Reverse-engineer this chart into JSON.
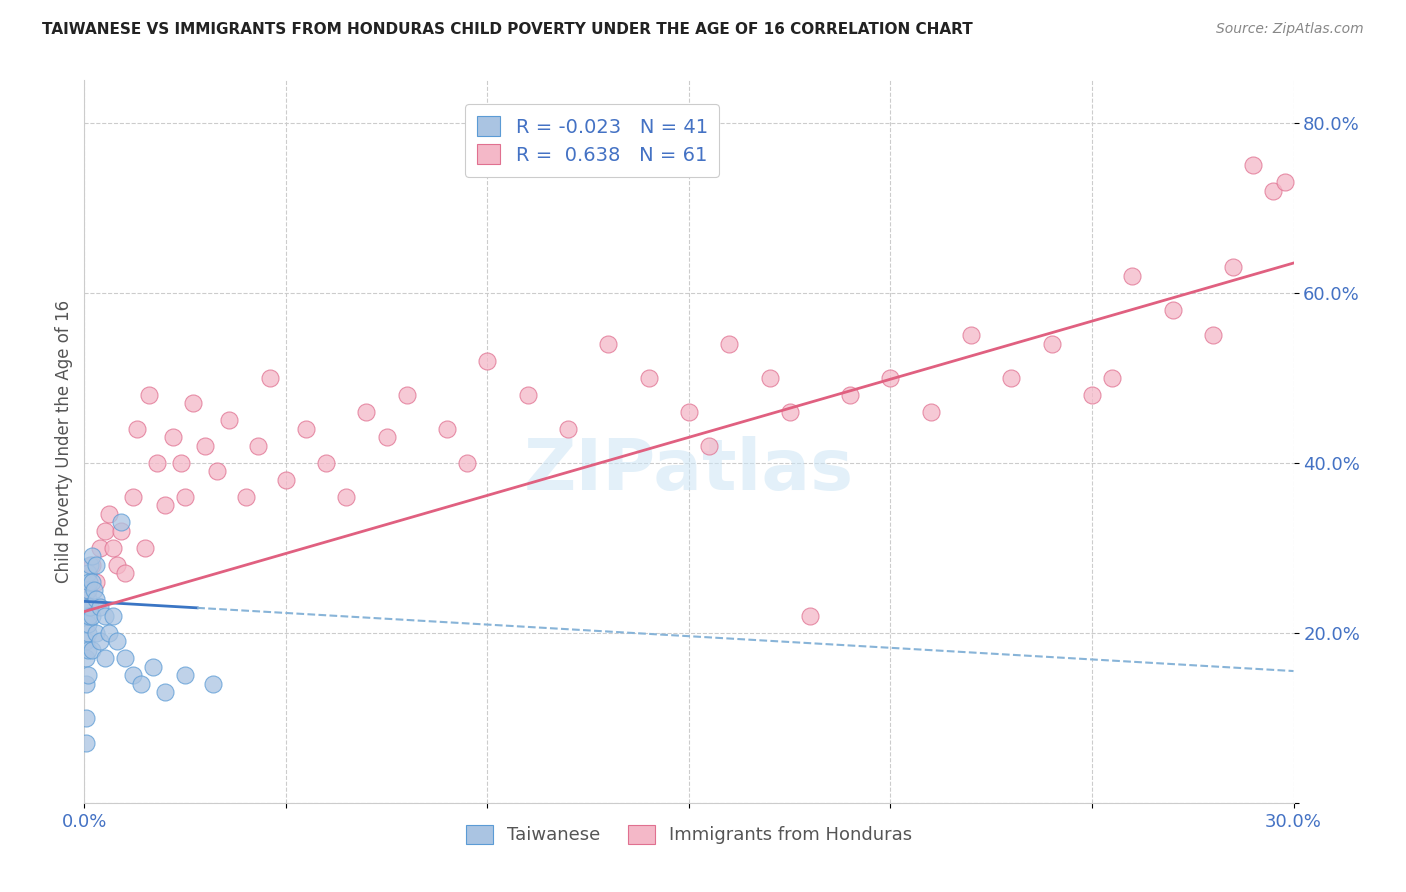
{
  "title": "TAIWANESE VS IMMIGRANTS FROM HONDURAS CHILD POVERTY UNDER THE AGE OF 16 CORRELATION CHART",
  "source": "Source: ZipAtlas.com",
  "ylabel": "Child Poverty Under the Age of 16",
  "xlim": [
    0.0,
    0.3
  ],
  "ylim": [
    0.0,
    0.85
  ],
  "xtick_positions": [
    0.0,
    0.05,
    0.1,
    0.15,
    0.2,
    0.25,
    0.3
  ],
  "xtick_labels": [
    "0.0%",
    "",
    "",
    "",
    "",
    "",
    "30.0%"
  ],
  "ytick_positions": [
    0.0,
    0.2,
    0.4,
    0.6,
    0.8
  ],
  "ytick_labels": [
    "",
    "20.0%",
    "40.0%",
    "60.0%",
    "80.0%"
  ],
  "background_color": "#ffffff",
  "watermark": "ZIPatlas",
  "tw_color": "#aac4e2",
  "tw_edge": "#5b9bd5",
  "tw_line_solid": "#3a75c4",
  "tw_line_dashed": "#88b4d8",
  "ho_color": "#f4b8c8",
  "ho_edge": "#e07090",
  "ho_line": "#e06080",
  "tw_R": "-0.023",
  "tw_N": "41",
  "ho_R": "0.638",
  "ho_N": "61",
  "tw_label": "Taiwanese",
  "ho_label": "Immigrants from Honduras",
  "tw_x": [
    0.0005,
    0.0005,
    0.0005,
    0.0005,
    0.0005,
    0.0005,
    0.0008,
    0.0008,
    0.001,
    0.001,
    0.001,
    0.001,
    0.001,
    0.001,
    0.0012,
    0.0012,
    0.0015,
    0.0015,
    0.002,
    0.002,
    0.002,
    0.002,
    0.0025,
    0.003,
    0.003,
    0.003,
    0.004,
    0.004,
    0.005,
    0.005,
    0.006,
    0.007,
    0.008,
    0.009,
    0.01,
    0.012,
    0.014,
    0.017,
    0.02,
    0.025,
    0.032
  ],
  "tw_y": [
    0.22,
    0.19,
    0.17,
    0.14,
    0.1,
    0.07,
    0.24,
    0.2,
    0.27,
    0.25,
    0.23,
    0.21,
    0.18,
    0.15,
    0.26,
    0.22,
    0.28,
    0.23,
    0.29,
    0.26,
    0.22,
    0.18,
    0.25,
    0.28,
    0.24,
    0.2,
    0.23,
    0.19,
    0.22,
    0.17,
    0.2,
    0.22,
    0.19,
    0.33,
    0.17,
    0.15,
    0.14,
    0.16,
    0.13,
    0.15,
    0.14
  ],
  "ho_x": [
    0.001,
    0.002,
    0.003,
    0.004,
    0.005,
    0.006,
    0.007,
    0.008,
    0.009,
    0.01,
    0.012,
    0.013,
    0.015,
    0.016,
    0.018,
    0.02,
    0.022,
    0.024,
    0.025,
    0.027,
    0.03,
    0.033,
    0.036,
    0.04,
    0.043,
    0.046,
    0.05,
    0.055,
    0.06,
    0.065,
    0.07,
    0.075,
    0.08,
    0.09,
    0.095,
    0.1,
    0.11,
    0.12,
    0.13,
    0.14,
    0.15,
    0.155,
    0.16,
    0.17,
    0.175,
    0.18,
    0.19,
    0.2,
    0.21,
    0.22,
    0.23,
    0.24,
    0.25,
    0.255,
    0.26,
    0.27,
    0.28,
    0.285,
    0.29,
    0.295,
    0.298
  ],
  "ho_y": [
    0.25,
    0.28,
    0.26,
    0.3,
    0.32,
    0.34,
    0.3,
    0.28,
    0.32,
    0.27,
    0.36,
    0.44,
    0.3,
    0.48,
    0.4,
    0.35,
    0.43,
    0.4,
    0.36,
    0.47,
    0.42,
    0.39,
    0.45,
    0.36,
    0.42,
    0.5,
    0.38,
    0.44,
    0.4,
    0.36,
    0.46,
    0.43,
    0.48,
    0.44,
    0.4,
    0.52,
    0.48,
    0.44,
    0.54,
    0.5,
    0.46,
    0.42,
    0.54,
    0.5,
    0.46,
    0.22,
    0.48,
    0.5,
    0.46,
    0.55,
    0.5,
    0.54,
    0.48,
    0.5,
    0.62,
    0.58,
    0.55,
    0.63,
    0.75,
    0.72,
    0.73
  ],
  "tw_line_x0": 0.0,
  "tw_line_x1": 0.3,
  "tw_line_y0": 0.237,
  "tw_line_y1": 0.155,
  "ho_line_x0": 0.0,
  "ho_line_x1": 0.3,
  "ho_line_y0": 0.225,
  "ho_line_y1": 0.635
}
